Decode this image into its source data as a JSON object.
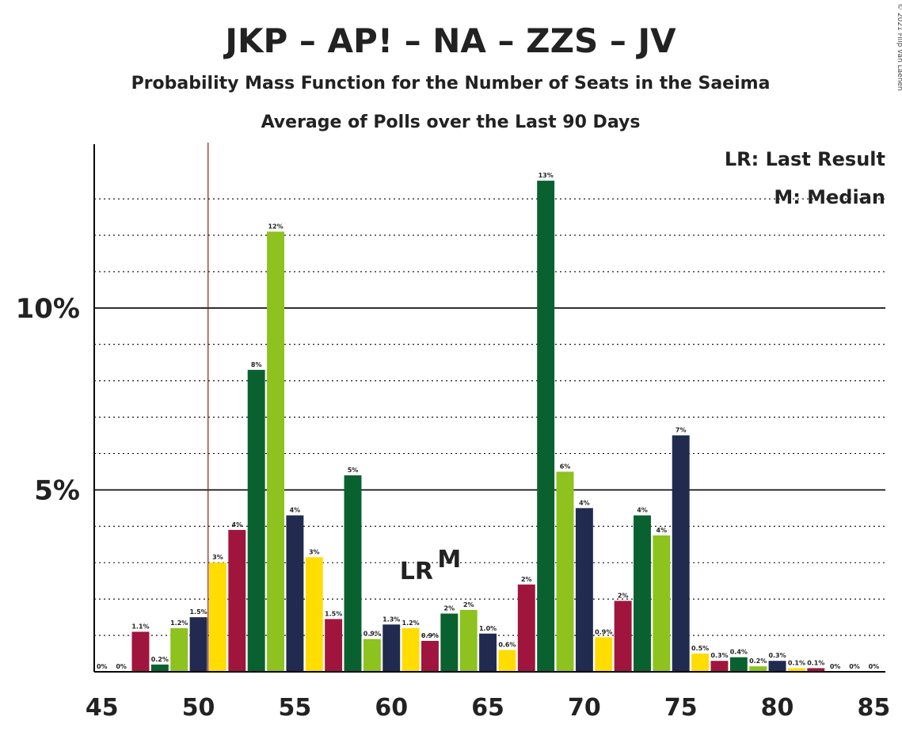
{
  "copyright": "© 2021 Filip van Laenen",
  "chart_data": {
    "type": "bar",
    "title": "JKP – AP! – NA – ZZS – JV",
    "subtitle": "Probability Mass Function for the Number of Seats in the Saeima",
    "subtitle2": "Average of Polls over the Last 90 Days",
    "xlabel": "",
    "ylabel": "",
    "legend": {
      "placement": "top-right",
      "lr": "LR: Last Result",
      "m": "M: Median"
    },
    "last_result": 51,
    "median": 63,
    "markers": {
      "lr": "LR",
      "m": "M"
    },
    "x_ticks": [
      "45",
      "50",
      "55",
      "60",
      "65",
      "70",
      "75",
      "80",
      "85"
    ],
    "y_ticks": [
      {
        "value": 5,
        "label": "5%"
      },
      {
        "value": 10,
        "label": "10%"
      }
    ],
    "ylim": [
      0,
      14.7
    ],
    "xlim": [
      44.6,
      85.6
    ],
    "grid": "dotted every 1%, solid at 5% and 10%",
    "palette": [
      "#0A6130",
      "#8DC21F",
      "#212A4F",
      "#FFDD00",
      "#A0153E"
    ],
    "x": [
      45,
      46,
      47,
      48,
      49,
      50,
      51,
      52,
      53,
      54,
      55,
      56,
      57,
      58,
      59,
      60,
      61,
      62,
      63,
      64,
      65,
      66,
      67,
      68,
      69,
      70,
      71,
      72,
      73,
      74,
      75,
      76,
      77,
      78,
      79,
      80,
      81,
      82,
      83,
      84,
      85
    ],
    "values": [
      0,
      0,
      1.1,
      0.2,
      1.2,
      1.5,
      3.0,
      3.9,
      8.3,
      12.1,
      4.3,
      3.15,
      1.45,
      5.4,
      0.9,
      1.3,
      1.2,
      0.85,
      1.6,
      1.7,
      1.05,
      0.6,
      2.4,
      13.5,
      5.5,
      4.5,
      0.95,
      1.95,
      4.3,
      3.75,
      6.5,
      0.5,
      0.3,
      0.4,
      0.15,
      0.3,
      0.1,
      0.1,
      0,
      0,
      0
    ],
    "labels": [
      "0%",
      "0%",
      "1.1%",
      "0.2%",
      "1.2%",
      "1.5%",
      "3%",
      "4%",
      "8%",
      "12%",
      "4%",
      "3%",
      "1.5%",
      "5%",
      "0.9%",
      "1.3%",
      "1.2%",
      "0.9%",
      "2%",
      "2%",
      "1.0%",
      "0.6%",
      "2%",
      "13%",
      "6%",
      "4%",
      "0.9%",
      "2%",
      "4%",
      "4%",
      "7%",
      "0.5%",
      "0.3%",
      "0.4%",
      "0.2%",
      "0.3%",
      "0.1%",
      "0.1%",
      "0%",
      "0%",
      "0%"
    ],
    "colors": [
      "#212A4F",
      "#FFDD00",
      "#A0153E",
      "#0A6130",
      "#8DC21F",
      "#212A4F",
      "#FFDD00",
      "#A0153E",
      "#0A6130",
      "#8DC21F",
      "#212A4F",
      "#FFDD00",
      "#A0153E",
      "#0A6130",
      "#8DC21F",
      "#212A4F",
      "#FFDD00",
      "#A0153E",
      "#0A6130",
      "#8DC21F",
      "#212A4F",
      "#FFDD00",
      "#A0153E",
      "#0A6130",
      "#8DC21F",
      "#212A4F",
      "#FFDD00",
      "#A0153E",
      "#0A6130",
      "#8DC21F",
      "#212A4F",
      "#FFDD00",
      "#A0153E",
      "#0A6130",
      "#8DC21F",
      "#212A4F",
      "#FFDD00",
      "#A0153E",
      "#0A6130",
      "#8DC21F",
      "#212A4F"
    ]
  }
}
